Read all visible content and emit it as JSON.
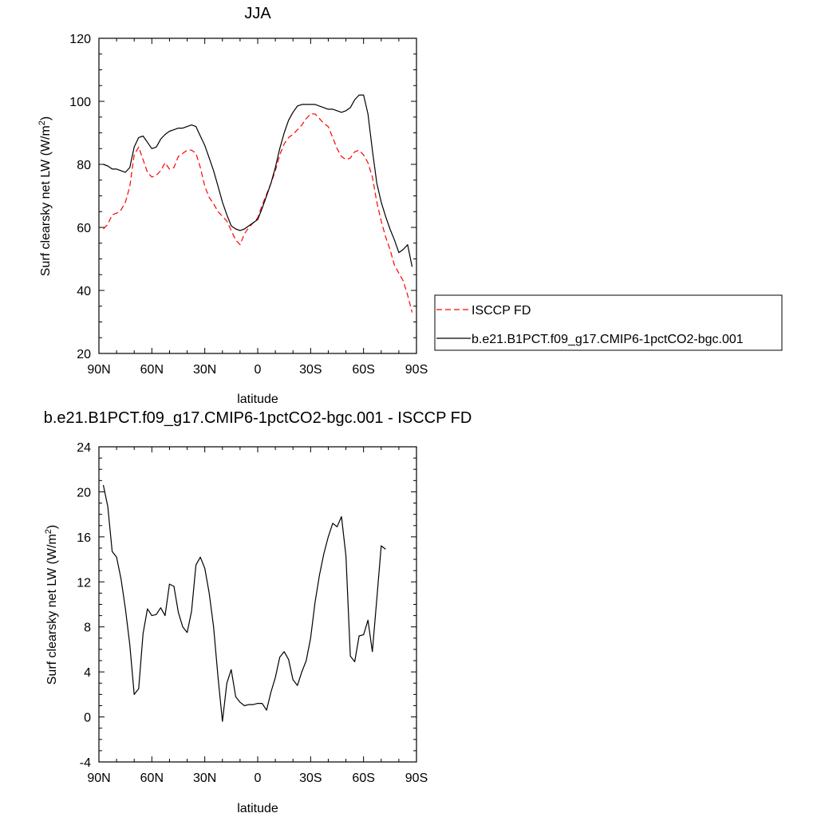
{
  "chart_data": [
    {
      "type": "line",
      "title": "JJA",
      "xlabel": "latitude",
      "ylabel": "Surf clearsky net LW (W/m²)",
      "ylabel_main": "Surf clearsky net LW (W/m",
      "ylabel_sup": "2",
      "ylabel_close": ")",
      "xlim": [
        90,
        -90
      ],
      "ylim": [
        20,
        120
      ],
      "x_ticks": [
        90,
        60,
        30,
        0,
        -30,
        -60,
        -90
      ],
      "x_tick_labels": [
        "90N",
        "60N",
        "30N",
        "0",
        "30S",
        "60S",
        "90S"
      ],
      "y_ticks": [
        20,
        40,
        60,
        80,
        100,
        120
      ],
      "y_tick_labels": [
        "20",
        "40",
        "60",
        "80",
        "100",
        "120"
      ],
      "legend_position": "right-outside",
      "series": [
        {
          "name": "ISCCP FD",
          "color": "#ff0000",
          "dash": "dashed",
          "points": [
            [
              87.5,
              59.5
            ],
            [
              85,
              61
            ],
            [
              82.5,
              64
            ],
            [
              80,
              64.5
            ],
            [
              77.5,
              65.5
            ],
            [
              75,
              68
            ],
            [
              72.5,
              73
            ],
            [
              70,
              83
            ],
            [
              67.5,
              85.5
            ],
            [
              65,
              81.5
            ],
            [
              62.5,
              77.5
            ],
            [
              60,
              76
            ],
            [
              57.5,
              76.5
            ],
            [
              55,
              78
            ],
            [
              52.5,
              80.5
            ],
            [
              50,
              78.5
            ],
            [
              47.5,
              79
            ],
            [
              45,
              82.5
            ],
            [
              42.5,
              83.5
            ],
            [
              40,
              84.5
            ],
            [
              37.5,
              84.5
            ],
            [
              35,
              83.5
            ],
            [
              32.5,
              79
            ],
            [
              30,
              73
            ],
            [
              27.5,
              69.5
            ],
            [
              25,
              67.5
            ],
            [
              22.5,
              65
            ],
            [
              20,
              63.5
            ],
            [
              17.5,
              62
            ],
            [
              15,
              59
            ],
            [
              12.5,
              56
            ],
            [
              10,
              54.5
            ],
            [
              7.5,
              58
            ],
            [
              5,
              60
            ],
            [
              2.5,
              61.5
            ],
            [
              0,
              63
            ],
            [
              -2.5,
              67
            ],
            [
              -5,
              70.5
            ],
            [
              -7.5,
              74
            ],
            [
              -10,
              78
            ],
            [
              -12.5,
              83
            ],
            [
              -15,
              86.5
            ],
            [
              -17.5,
              88.5
            ],
            [
              -20,
              89.5
            ],
            [
              -22.5,
              91
            ],
            [
              -25,
              92.5
            ],
            [
              -27.5,
              94.5
            ],
            [
              -30,
              96
            ],
            [
              -32.5,
              96
            ],
            [
              -35,
              94.5
            ],
            [
              -37.5,
              93
            ],
            [
              -40,
              92
            ],
            [
              -42.5,
              88.5
            ],
            [
              -45,
              85
            ],
            [
              -47.5,
              82.5
            ],
            [
              -50,
              81.5
            ],
            [
              -52.5,
              82
            ],
            [
              -55,
              84
            ],
            [
              -57.5,
              84.5
            ],
            [
              -60,
              83
            ],
            [
              -62.5,
              80.5
            ],
            [
              -65,
              76
            ],
            [
              -67.5,
              68
            ],
            [
              -70,
              62
            ],
            [
              -72.5,
              57
            ],
            [
              -75,
              53
            ],
            [
              -77.5,
              48
            ],
            [
              -80,
              45.5
            ],
            [
              -82.5,
              43
            ],
            [
              -85,
              38.5
            ],
            [
              -87.5,
              33
            ]
          ]
        },
        {
          "name": "b.e21.B1PCT.f09_g17.CMIP6-1pctCO2-bgc.001",
          "color": "#000000",
          "dash": "solid",
          "points": [
            [
              87.5,
              80
            ],
            [
              85,
              79.5
            ],
            [
              82.5,
              78.5
            ],
            [
              80,
              78.5
            ],
            [
              77.5,
              78
            ],
            [
              75,
              77.5
            ],
            [
              72.5,
              79
            ],
            [
              70,
              85.5
            ],
            [
              67.5,
              88.5
            ],
            [
              65,
              89
            ],
            [
              62.5,
              87
            ],
            [
              60,
              85
            ],
            [
              57.5,
              85.5
            ],
            [
              55,
              88
            ],
            [
              52.5,
              89.5
            ],
            [
              50,
              90.5
            ],
            [
              47.5,
              91
            ],
            [
              45,
              91.5
            ],
            [
              42.5,
              91.5
            ],
            [
              40,
              92
            ],
            [
              37.5,
              92.5
            ],
            [
              35,
              92
            ],
            [
              32.5,
              89
            ],
            [
              30,
              86
            ],
            [
              27.5,
              82
            ],
            [
              25,
              78
            ],
            [
              22.5,
              73
            ],
            [
              20,
              68
            ],
            [
              17.5,
              64
            ],
            [
              15,
              60.5
            ],
            [
              12.5,
              59.5
            ],
            [
              10,
              59
            ],
            [
              7.5,
              59.5
            ],
            [
              5,
              60.5
            ],
            [
              2.5,
              61.5
            ],
            [
              0,
              62.5
            ],
            [
              -2.5,
              66
            ],
            [
              -5,
              70
            ],
            [
              -7.5,
              74
            ],
            [
              -10,
              79
            ],
            [
              -12.5,
              85
            ],
            [
              -15,
              90
            ],
            [
              -17.5,
              94
            ],
            [
              -20,
              96.5
            ],
            [
              -22.5,
              98.5
            ],
            [
              -25,
              99
            ],
            [
              -27.5,
              99
            ],
            [
              -30,
              99
            ],
            [
              -32.5,
              99
            ],
            [
              -35,
              98.5
            ],
            [
              -37.5,
              98
            ],
            [
              -40,
              97.5
            ],
            [
              -42.5,
              97.5
            ],
            [
              -45,
              97
            ],
            [
              -47.5,
              96.5
            ],
            [
              -50,
              97
            ],
            [
              -52.5,
              98
            ],
            [
              -55,
              100.5
            ],
            [
              -57.5,
              102
            ],
            [
              -60,
              102
            ],
            [
              -62.5,
              96
            ],
            [
              -65,
              84.5
            ],
            [
              -67.5,
              74
            ],
            [
              -70,
              68
            ],
            [
              -72.5,
              63.5
            ],
            [
              -75,
              59.5
            ],
            [
              -77.5,
              56
            ],
            [
              -80,
              52
            ],
            [
              -82.5,
              53
            ],
            [
              -85,
              54.5
            ],
            [
              -87.5,
              47.5
            ]
          ]
        }
      ]
    },
    {
      "type": "line",
      "title": "b.e21.B1PCT.f09_g17.CMIP6-1pctCO2-bgc.001 - ISCCP FD",
      "xlabel": "latitude",
      "ylabel": "Surf clearsky net LW (W/m²)",
      "ylabel_main": "Surf clearsky net LW (W/m",
      "ylabel_sup": "2",
      "ylabel_close": ")",
      "xlim": [
        90,
        -90
      ],
      "ylim": [
        -4,
        24
      ],
      "x_ticks": [
        90,
        60,
        30,
        0,
        -30,
        -60,
        -90
      ],
      "x_tick_labels": [
        "90N",
        "60N",
        "30N",
        "0",
        "30S",
        "60S",
        "90S"
      ],
      "y_ticks": [
        -4,
        0,
        4,
        8,
        12,
        16,
        20,
        24
      ],
      "y_tick_labels": [
        "-4",
        "0",
        "4",
        "8",
        "12",
        "16",
        "20",
        "24"
      ],
      "series": [
        {
          "color": "#000000",
          "dash": "solid",
          "points": [
            [
              87.5,
              20.6
            ],
            [
              85,
              18.7
            ],
            [
              82.5,
              14.7
            ],
            [
              80,
              14.2
            ],
            [
              77.5,
              12.3
            ],
            [
              75,
              9.6
            ],
            [
              72.5,
              6.4
            ],
            [
              70,
              2.0
            ],
            [
              67.5,
              2.5
            ],
            [
              65,
              7.4
            ],
            [
              62.5,
              9.6
            ],
            [
              60,
              9.0
            ],
            [
              57.5,
              9.1
            ],
            [
              55,
              9.7
            ],
            [
              52.5,
              9.0
            ],
            [
              50,
              11.8
            ],
            [
              47.5,
              11.6
            ],
            [
              45,
              9.3
            ],
            [
              42.5,
              8.0
            ],
            [
              40,
              7.5
            ],
            [
              37.5,
              9.4
            ],
            [
              35,
              13.5
            ],
            [
              32.5,
              14.2
            ],
            [
              30,
              13.2
            ],
            [
              27.5,
              11.0
            ],
            [
              25,
              8.0
            ],
            [
              22.5,
              3.5
            ],
            [
              20,
              -0.4
            ],
            [
              17.5,
              3.0
            ],
            [
              15,
              4.2
            ],
            [
              12.5,
              1.8
            ],
            [
              10,
              1.3
            ],
            [
              7.5,
              1.0
            ],
            [
              5,
              1.1
            ],
            [
              2.5,
              1.1
            ],
            [
              0,
              1.2
            ],
            [
              -2.5,
              1.2
            ],
            [
              -5,
              0.6
            ],
            [
              -7.5,
              2.2
            ],
            [
              -10,
              3.5
            ],
            [
              -12.5,
              5.3
            ],
            [
              -15,
              5.8
            ],
            [
              -17.5,
              5.1
            ],
            [
              -20,
              3.3
            ],
            [
              -22.5,
              2.8
            ],
            [
              -25,
              4.0
            ],
            [
              -27.5,
              5.0
            ],
            [
              -30,
              7.0
            ],
            [
              -32.5,
              10.2
            ],
            [
              -35,
              12.6
            ],
            [
              -37.5,
              14.5
            ],
            [
              -40,
              16.0
            ],
            [
              -42.5,
              17.2
            ],
            [
              -45,
              16.9
            ],
            [
              -47.5,
              17.8
            ],
            [
              -50,
              14.3
            ],
            [
              -52.5,
              5.4
            ],
            [
              -55,
              4.9
            ],
            [
              -57.5,
              7.2
            ],
            [
              -60,
              7.3
            ],
            [
              -62.5,
              8.6
            ],
            [
              -65,
              5.8
            ],
            [
              -67.5,
              10.5
            ],
            [
              -70,
              15.2
            ],
            [
              -72.5,
              14.9
            ]
          ]
        }
      ]
    }
  ]
}
